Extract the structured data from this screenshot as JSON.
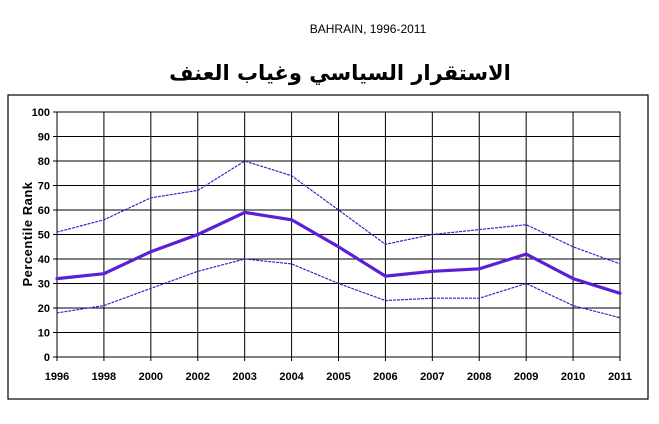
{
  "chart_data": {
    "type": "line",
    "subtitle": "BAHRAIN, 1996-2011",
    "title": "الاستقرار السياسي وغياب العنف",
    "ylabel": "Percentile Rank",
    "xlabel": "",
    "ylim": [
      0,
      100
    ],
    "yticks": [
      0,
      10,
      20,
      30,
      40,
      50,
      60,
      70,
      80,
      90,
      100
    ],
    "categories": [
      "1996",
      "1998",
      "2000",
      "2002",
      "2003",
      "2004",
      "2005",
      "2006",
      "2007",
      "2008",
      "2009",
      "2010",
      "2011"
    ],
    "grid": true,
    "series": [
      {
        "style": "solid",
        "color": "#5a1fd6",
        "values": [
          32,
          34,
          43,
          50,
          59,
          56,
          45,
          33,
          35,
          36,
          42,
          32,
          26
        ]
      },
      {
        "style": "dotted",
        "color": "#3a1fc8",
        "values": [
          51,
          56,
          65,
          68,
          80,
          74,
          60,
          46,
          50,
          52,
          54,
          45,
          38
        ]
      },
      {
        "style": "dotted",
        "color": "#3a1fc8",
        "values": [
          18,
          21,
          28,
          35,
          40,
          38,
          30,
          23,
          24,
          24,
          30,
          21,
          16
        ]
      }
    ]
  }
}
